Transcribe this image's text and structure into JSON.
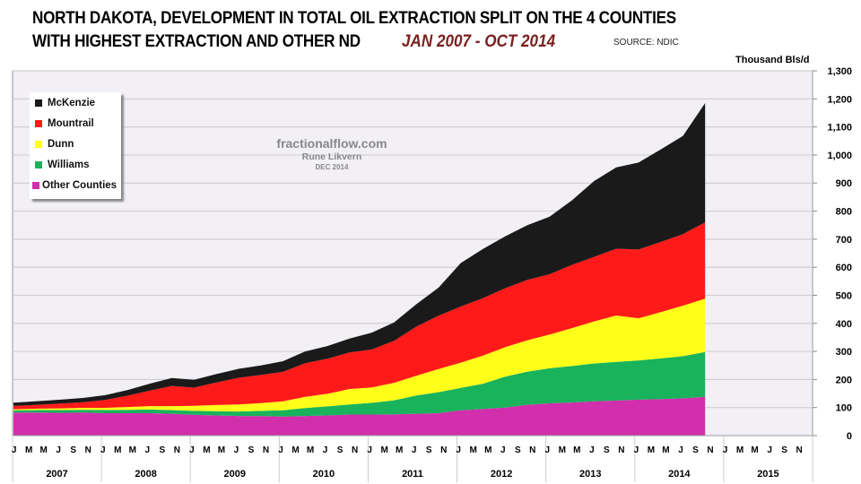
{
  "header": {
    "title_line1": "NORTH DAKOTA, DEVELOPMENT IN TOTAL OIL EXTRACTION SPLIT ON THE 4 COUNTIES",
    "title_line2": "WITH HIGHEST EXTRACTION AND OTHER ND",
    "period": "JAN 2007 - OCT 2014",
    "source": "SOURCE: NDIC"
  },
  "watermark": {
    "site": "fractionalflow.com",
    "author": "Rune Likvern",
    "date": "DEC 2014"
  },
  "chart_data": {
    "type": "area",
    "stacked": true,
    "ylabel": "Thousand Bls/d",
    "ylim": [
      0,
      1300
    ],
    "ytick_step": 100,
    "y_tick_labels": [
      "0",
      "100",
      "200",
      "300",
      "400",
      "500",
      "600",
      "700",
      "800",
      "900",
      "1,000",
      "1,100",
      "1,200",
      "1,300"
    ],
    "y_axis_side": "right",
    "grid": true,
    "legend_position": "top-left",
    "x_start": "2007-01",
    "x_axis_years": [
      "2007",
      "2008",
      "2009",
      "2010",
      "2011",
      "2012",
      "2013",
      "2014",
      "2015"
    ],
    "x_month_labels": [
      "J",
      "M",
      "M",
      "J",
      "S",
      "N"
    ],
    "x_month_indices": [
      0,
      2,
      4,
      6,
      8,
      10
    ],
    "x_points_month_index": [
      0,
      3,
      6,
      9,
      12,
      15,
      18,
      21,
      24,
      27,
      30,
      33,
      36,
      39,
      42,
      45,
      48,
      51,
      54,
      57,
      60,
      63,
      66,
      69,
      72,
      75,
      78,
      81,
      84,
      87,
      90,
      93
    ],
    "series": [
      {
        "name": "Other Counties",
        "color": "#d22fac",
        "values": [
          82,
          82,
          81,
          82,
          80,
          80,
          80,
          78,
          74,
          72,
          70,
          70,
          68,
          70,
          72,
          75,
          75,
          76,
          78,
          80,
          90,
          95,
          100,
          110,
          115,
          118,
          122,
          125,
          128,
          130,
          133,
          138
        ]
      },
      {
        "name": "Williams",
        "color": "#19b35c",
        "values": [
          8,
          9,
          10,
          10,
          11,
          12,
          13,
          13,
          14,
          15,
          16,
          18,
          22,
          28,
          32,
          36,
          42,
          50,
          65,
          75,
          80,
          90,
          110,
          118,
          125,
          130,
          135,
          138,
          140,
          145,
          150,
          160
        ]
      },
      {
        "name": "Dunn",
        "color": "#ffff1a",
        "values": [
          4,
          5,
          6,
          7,
          8,
          10,
          12,
          14,
          18,
          22,
          25,
          28,
          32,
          40,
          45,
          55,
          55,
          62,
          70,
          82,
          90,
          100,
          105,
          112,
          120,
          135,
          150,
          165,
          150,
          165,
          180,
          190
        ]
      },
      {
        "name": "Mountrail",
        "color": "#ff1a1a",
        "values": [
          12,
          14,
          17,
          20,
          28,
          40,
          55,
          72,
          65,
          80,
          95,
          100,
          105,
          120,
          125,
          130,
          135,
          150,
          175,
          190,
          200,
          205,
          210,
          215,
          215,
          225,
          230,
          238,
          245,
          250,
          255,
          272
        ]
      },
      {
        "name": "McKenzie",
        "color": "#1a1a1a",
        "values": [
          12,
          13,
          14,
          15,
          17,
          20,
          25,
          28,
          28,
          30,
          32,
          34,
          38,
          42,
          45,
          50,
          60,
          65,
          80,
          100,
          155,
          175,
          185,
          195,
          205,
          230,
          270,
          290,
          310,
          330,
          350,
          425
        ]
      }
    ],
    "legend_order": [
      "McKenzie",
      "Mountrail",
      "Dunn",
      "Williams",
      "Other Counties"
    ]
  }
}
